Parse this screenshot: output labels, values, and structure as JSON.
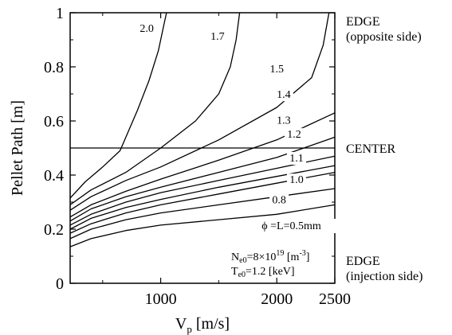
{
  "chart_data": {
    "type": "line",
    "xlabel": "V",
    "xlabel_sub": "p",
    "xlabel_units": " [m/s]",
    "ylabel": "Pellet Path [m]",
    "xlim": [
      220,
      2500
    ],
    "ylim": [
      0,
      1
    ],
    "x_ticks": [
      {
        "value": 1000,
        "label": "1000"
      },
      {
        "value": 2000,
        "label": "2000"
      },
      {
        "value": 2500,
        "label": "2500"
      }
    ],
    "y_ticks": [
      {
        "value": 0,
        "label": "0"
      },
      {
        "value": 0.2,
        "label": "0.2"
      },
      {
        "value": 0.4,
        "label": "0.4"
      },
      {
        "value": 0.6,
        "label": "0.6"
      },
      {
        "value": 0.8,
        "label": "0.8"
      },
      {
        "value": 1,
        "label": "1"
      }
    ],
    "center_line_y": 0.5,
    "right_annotations": {
      "edge_top_line1": "EDGE",
      "edge_top_line2": "(opposite side)",
      "center": "CENTER",
      "edge_bottom_line1": "EDGE",
      "edge_bottom_line2": "(injection side)"
    },
    "params": {
      "ne_prefix": "N",
      "ne_sub": "e0",
      "ne_mid": "=8×10",
      "ne_sup": "19",
      "ne_unit_pre": " [m",
      "ne_unit_sup": "-3",
      "ne_unit_post": "]",
      "te_prefix": "T",
      "te_sub": "e0",
      "te_rest": "=1.2 [keV]"
    },
    "series": [
      {
        "name": "ϕ=L=0.5mm",
        "x": [
          220,
          400,
          700,
          1000,
          1500,
          2000,
          2500
        ],
        "y": [
          0.135,
          0.165,
          0.195,
          0.215,
          0.235,
          0.255,
          0.29
        ]
      },
      {
        "name": "0.8",
        "x": [
          220,
          400,
          700,
          1000,
          1500,
          2000,
          2500
        ],
        "y": [
          0.165,
          0.2,
          0.235,
          0.26,
          0.29,
          0.32,
          0.35
        ]
      },
      {
        "name": "1.0",
        "x": [
          220,
          400,
          700,
          1000,
          1500,
          2000,
          2500
        ],
        "y": [
          0.185,
          0.22,
          0.26,
          0.29,
          0.33,
          0.37,
          0.41
        ]
      },
      {
        "name": "1.1",
        "x": [
          220,
          400,
          700,
          1000,
          1500,
          2000,
          2500
        ],
        "y": [
          0.2,
          0.24,
          0.28,
          0.31,
          0.355,
          0.395,
          0.435
        ]
      },
      {
        "name": "1.2",
        "x": [
          220,
          400,
          700,
          1000,
          1500,
          2000,
          2500
        ],
        "y": [
          0.215,
          0.255,
          0.3,
          0.335,
          0.38,
          0.425,
          0.47
        ]
      },
      {
        "name": "1.3",
        "x": [
          220,
          400,
          700,
          1000,
          1500,
          2000,
          2500
        ],
        "y": [
          0.23,
          0.275,
          0.32,
          0.355,
          0.41,
          0.465,
          0.54
        ]
      },
      {
        "name": "1.4",
        "x": [
          220,
          400,
          700,
          1000,
          1500,
          2000,
          2500
        ],
        "y": [
          0.245,
          0.29,
          0.34,
          0.385,
          0.455,
          0.53,
          0.63
        ]
      },
      {
        "name": "1.5",
        "x": [
          220,
          400,
          700,
          1000,
          1500,
          2000,
          2300,
          2400,
          2450
        ],
        "y": [
          0.27,
          0.32,
          0.38,
          0.43,
          0.53,
          0.65,
          0.76,
          0.88,
          1.0
        ]
      },
      {
        "name": "1.7",
        "x": [
          220,
          400,
          700,
          1000,
          1300,
          1500,
          1600,
          1650,
          1680
        ],
        "y": [
          0.29,
          0.345,
          0.41,
          0.5,
          0.6,
          0.7,
          0.8,
          0.9,
          1.0
        ]
      },
      {
        "name": "2.0",
        "x": [
          220,
          350,
          500,
          650,
          800,
          900,
          980,
          1030,
          1050
        ],
        "y": [
          0.315,
          0.375,
          0.43,
          0.49,
          0.64,
          0.75,
          0.86,
          0.96,
          1.0
        ]
      }
    ],
    "curve_labels": [
      {
        "text": "2.0",
        "x": 880,
        "y": 0.93
      },
      {
        "text": "1.7",
        "x": 1490,
        "y": 0.9
      },
      {
        "text": "1.5",
        "x": 2000,
        "y": 0.78
      },
      {
        "text": "1.4",
        "x": 2060,
        "y": 0.685
      },
      {
        "text": "1.3",
        "x": 2060,
        "y": 0.59
      },
      {
        "text": "1.2",
        "x": 2150,
        "y": 0.538
      },
      {
        "text": "1.1",
        "x": 2170,
        "y": 0.45
      },
      {
        "text": "1.0",
        "x": 2170,
        "y": 0.37
      },
      {
        "text": "0.8",
        "x": 2020,
        "y": 0.295
      }
    ],
    "phi_label": {
      "text": "ϕ =L=0.5mm",
      "x": 1870,
      "y": 0.2
    }
  }
}
